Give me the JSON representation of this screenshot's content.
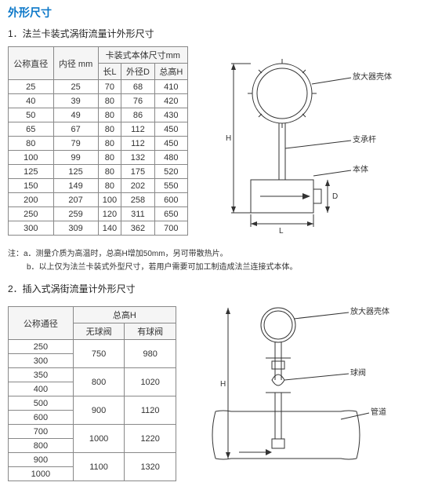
{
  "page_title": "外形尺寸",
  "section1": {
    "title": "1．法兰卡装式涡街流量计外形尺寸",
    "header_top": [
      "公称直径",
      "内径 mm",
      "卡装式本体尺寸mm"
    ],
    "header_sub": [
      "长L",
      "外径D",
      "总高H"
    ],
    "rows": [
      [
        "25",
        "25",
        "70",
        "68",
        "410"
      ],
      [
        "40",
        "39",
        "80",
        "76",
        "420"
      ],
      [
        "50",
        "49",
        "80",
        "86",
        "430"
      ],
      [
        "65",
        "67",
        "80",
        "112",
        "450"
      ],
      [
        "80",
        "79",
        "80",
        "112",
        "450"
      ],
      [
        "100",
        "99",
        "80",
        "132",
        "480"
      ],
      [
        "125",
        "125",
        "80",
        "175",
        "520"
      ],
      [
        "150",
        "149",
        "80",
        "202",
        "550"
      ],
      [
        "200",
        "207",
        "100",
        "258",
        "600"
      ],
      [
        "250",
        "259",
        "120",
        "311",
        "650"
      ],
      [
        "300",
        "309",
        "140",
        "362",
        "700"
      ]
    ],
    "note_a": "注：a．测量介质为高温时，总高H增加50mm，另可带散热片。",
    "note_b": "b．以上仅为法兰卡装式外型尺寸，若用户需要可加工制造成法兰连接式本体。",
    "diagram_labels": {
      "amp": "放大器壳体",
      "rod": "支承杆",
      "body": "本体",
      "H": "H",
      "L": "L",
      "D": "D"
    }
  },
  "section2": {
    "title": "2．插入式涡街流量计外形尺寸",
    "header_top": [
      "公称通径",
      "总高H"
    ],
    "header_sub": [
      "无球阀",
      "有球阀"
    ],
    "rows": [
      {
        "dn": [
          "250",
          "300"
        ],
        "h1": "750",
        "h2": "980"
      },
      {
        "dn": [
          "350",
          "400"
        ],
        "h1": "800",
        "h2": "1020"
      },
      {
        "dn": [
          "500",
          "600"
        ],
        "h1": "900",
        "h2": "1120"
      },
      {
        "dn": [
          "700",
          "800"
        ],
        "h1": "1000",
        "h2": "1220"
      },
      {
        "dn": [
          "900",
          "1000"
        ],
        "h1": "1100",
        "h2": "1320"
      }
    ],
    "diagram_labels": {
      "amp": "放大器壳体",
      "valve": "球阀",
      "pipe": "管道",
      "H": "H"
    }
  }
}
